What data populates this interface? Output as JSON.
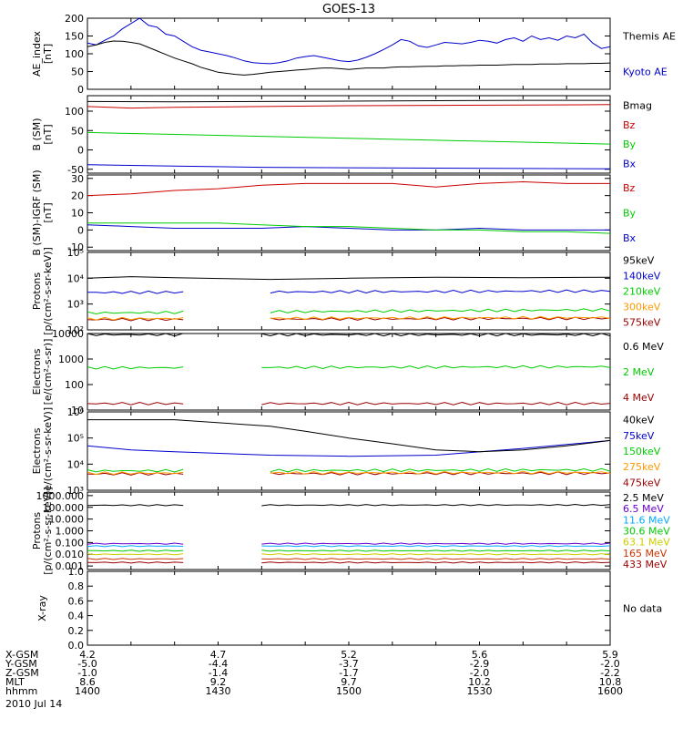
{
  "title": "GOES-13",
  "date": "2010 Jul 14",
  "footer": {
    "rows": [
      {
        "label": "X-GSM",
        "values": [
          "4.2",
          "4.7",
          "5.2",
          "5.6",
          "5.9"
        ]
      },
      {
        "label": "Y-GSM",
        "values": [
          "-5.0",
          "-4.4",
          "-3.7",
          "-2.9",
          "-2.0"
        ]
      },
      {
        "label": "Z-GSM",
        "values": [
          "-1.0",
          "-1.4",
          "-1.7",
          "-2.0",
          "-2.2"
        ]
      },
      {
        "label": "MLT",
        "values": [
          "8.6",
          "9.2",
          "9.7",
          "10.2",
          "10.8"
        ]
      },
      {
        "label": "hhmm",
        "values": [
          "1400",
          "1430",
          "1500",
          "1530",
          "1600"
        ]
      }
    ]
  },
  "chart_data": [
    {
      "type": "line",
      "ylabel": "AE_index\n[nT]",
      "ylim": [
        0,
        200
      ],
      "yticks": [
        "0",
        "50",
        "100",
        "150",
        "200"
      ],
      "series": [
        {
          "name": "Kyoto AE",
          "color": "#0000cc",
          "x": [
            0,
            2,
            4,
            6,
            8,
            10,
            12,
            14,
            16,
            18,
            20,
            22,
            24,
            26,
            28,
            30,
            32,
            34,
            36,
            38,
            40,
            42,
            44,
            46,
            48,
            50,
            52,
            54,
            56,
            58,
            60,
            62,
            64,
            66,
            68,
            70,
            72,
            74,
            76,
            78,
            80,
            82,
            84,
            86,
            88,
            90,
            92,
            94,
            96,
            98,
            100,
            102,
            104,
            106,
            108,
            110,
            112,
            114,
            116,
            118,
            120
          ],
          "y": [
            130,
            125,
            138,
            150,
            170,
            185,
            200,
            180,
            175,
            155,
            150,
            135,
            120,
            110,
            105,
            100,
            95,
            88,
            80,
            75,
            73,
            72,
            75,
            80,
            88,
            92,
            95,
            90,
            85,
            80,
            78,
            82,
            90,
            100,
            112,
            125,
            140,
            135,
            122,
            118,
            125,
            132,
            130,
            128,
            132,
            138,
            135,
            130,
            140,
            145,
            135,
            150,
            140,
            145,
            138,
            150,
            145,
            155,
            130,
            115,
            120
          ]
        },
        {
          "name": "Themis AE",
          "color": "#000000",
          "x": [
            0,
            2,
            4,
            6,
            8,
            10,
            12,
            14,
            16,
            18,
            20,
            22,
            24,
            26,
            28,
            30,
            32,
            34,
            36,
            38,
            40,
            42,
            44,
            46,
            48,
            50,
            52,
            54,
            56,
            58,
            60,
            62,
            64,
            66,
            68,
            70,
            72,
            74,
            76,
            78,
            80,
            82,
            84,
            86,
            88,
            90,
            92,
            94,
            96,
            98,
            100,
            102,
            104,
            106,
            108,
            110,
            112,
            114,
            116,
            118,
            120
          ],
          "y": [
            120,
            125,
            132,
            136,
            135,
            132,
            128,
            118,
            108,
            98,
            88,
            80,
            72,
            62,
            55,
            48,
            45,
            42,
            40,
            42,
            45,
            48,
            50,
            52,
            54,
            56,
            58,
            60,
            60,
            58,
            56,
            58,
            60,
            60,
            60,
            62,
            63,
            63,
            64,
            65,
            65,
            66,
            66,
            67,
            67,
            68,
            68,
            68,
            69,
            70,
            70,
            70,
            71,
            71,
            71,
            72,
            72,
            72,
            73,
            73,
            74
          ]
        }
      ]
    },
    {
      "type": "line",
      "ylabel": "B (SM)\n[nT]",
      "ylim": [
        -60,
        140
      ],
      "yticks": [
        "-50",
        "0",
        "50",
        "100"
      ],
      "series": [
        {
          "name": "Bx",
          "color": "#0000cc",
          "x": [
            0,
            20,
            40,
            60,
            80,
            100,
            120
          ],
          "y": [
            -38,
            -42,
            -45,
            -46,
            -47,
            -48,
            -49
          ]
        },
        {
          "name": "By",
          "color": "#00cc00",
          "x": [
            0,
            20,
            40,
            60,
            80,
            100,
            120
          ],
          "y": [
            45,
            40,
            35,
            30,
            25,
            20,
            15
          ]
        },
        {
          "name": "Bz",
          "color": "#cc0000",
          "x": [
            0,
            10,
            20,
            40,
            60,
            80,
            100,
            120
          ],
          "y": [
            112,
            108,
            110,
            112,
            114,
            115,
            116,
            117
          ]
        },
        {
          "name": "Bmag",
          "color": "#000000",
          "x": [
            0,
            20,
            40,
            60,
            80,
            100,
            120
          ],
          "y": [
            125,
            124,
            125,
            126,
            127,
            128,
            128
          ]
        }
      ]
    },
    {
      "type": "line",
      "ylabel": "B (SM)-IGRF (SM)\n[nT]",
      "ylim": [
        -12,
        32
      ],
      "yticks": [
        "-10",
        "0",
        "10",
        "20",
        "30"
      ],
      "series": [
        {
          "name": "Bx",
          "color": "#0000cc",
          "x": [
            0,
            10,
            20,
            30,
            40,
            50,
            60,
            70,
            80,
            90,
            100,
            110,
            120
          ],
          "y": [
            3,
            2,
            1,
            1,
            1,
            2,
            1,
            0,
            0,
            1,
            0,
            0,
            0
          ]
        },
        {
          "name": "By",
          "color": "#00cc00",
          "x": [
            0,
            10,
            20,
            30,
            40,
            50,
            60,
            70,
            80,
            90,
            100,
            110,
            120
          ],
          "y": [
            4,
            4,
            4,
            4,
            3,
            2,
            2,
            1,
            0,
            0,
            -1,
            -1,
            -2
          ]
        },
        {
          "name": "Bz",
          "color": "#cc0000",
          "x": [
            0,
            10,
            20,
            30,
            40,
            50,
            60,
            70,
            80,
            90,
            100,
            110,
            120
          ],
          "y": [
            20,
            21,
            23,
            24,
            26,
            27,
            27,
            27,
            25,
            27,
            28,
            27,
            27
          ]
        }
      ]
    },
    {
      "type": "line",
      "log": true,
      "ylabel": "Protons\n[p/(cm²-s-sr-keV)]",
      "ylim": [
        100,
        100000
      ],
      "yticks": [
        "10²",
        "10³",
        "10⁴",
        "10⁵"
      ],
      "gap": [
        22,
        42
      ],
      "series": [
        {
          "name": "575keV",
          "color": "#990000",
          "x": [
            0,
            120
          ],
          "y": [
            250,
            280
          ]
        },
        {
          "name": "300keV",
          "color": "#ff9900",
          "x": [
            0,
            120
          ],
          "y": [
            270,
            300
          ]
        },
        {
          "name": "210keV",
          "color": "#00cc00",
          "x": [
            0,
            120
          ],
          "y": [
            450,
            600
          ]
        },
        {
          "name": "140keV",
          "color": "#0000cc",
          "x": [
            0,
            120
          ],
          "y": [
            2800,
            3200
          ]
        },
        {
          "name": "95keV",
          "color": "#000000",
          "x": [
            0,
            10,
            20,
            42,
            60,
            80,
            100,
            120
          ],
          "y": [
            10000,
            11500,
            10500,
            9000,
            10000,
            11000,
            10500,
            11000
          ]
        }
      ]
    },
    {
      "type": "line",
      "log": true,
      "ylabel": "Electrons\n[e/(cm²-s-sr)]",
      "ylim": [
        10,
        10000
      ],
      "yticks": [
        "10",
        "100",
        "1000",
        "10000"
      ],
      "gap": [
        22,
        40
      ],
      "series": [
        {
          "name": "4 MeV",
          "color": "#990000",
          "x": [
            0,
            120
          ],
          "y": [
            18,
            18
          ]
        },
        {
          "name": "2 MeV",
          "color": "#00cc00",
          "x": [
            0,
            120
          ],
          "y": [
            450,
            500
          ]
        },
        {
          "name": "0.6 MeV",
          "color": "#000000",
          "x": [
            0,
            120
          ],
          "y": [
            9000,
            9000
          ]
        }
      ]
    },
    {
      "type": "line",
      "log": true,
      "ylabel": "Electrons\n[e/(cm²-s-sr-keV)]",
      "ylim": [
        1000,
        1000000
      ],
      "yticks": [
        "10³",
        "10⁴",
        "10⁵",
        "10⁶"
      ],
      "gap": [
        22,
        42
      ],
      "series": [
        {
          "name": "475keV",
          "color": "#990000",
          "x": [
            0,
            120
          ],
          "y": [
            4200,
            4500
          ]
        },
        {
          "name": "275keV",
          "color": "#ff9900",
          "x": [
            0,
            120
          ],
          "y": [
            4500,
            4800
          ]
        },
        {
          "name": "150keV",
          "color": "#00cc00",
          "x": [
            0,
            120
          ],
          "y": [
            5500,
            6000
          ]
        },
        {
          "name": "75keV",
          "color": "#0000cc",
          "x": [
            0,
            10,
            20,
            42,
            60,
            80,
            100,
            120
          ],
          "y": [
            50000,
            35000,
            30000,
            22000,
            20000,
            22000,
            40000,
            80000
          ]
        },
        {
          "name": "40keV",
          "color": "#000000",
          "x": [
            0,
            10,
            20,
            42,
            50,
            60,
            70,
            80,
            90,
            100,
            110,
            120
          ],
          "y": [
            500000,
            500000,
            500000,
            280000,
            180000,
            100000,
            60000,
            35000,
            30000,
            35000,
            50000,
            80000
          ]
        }
      ]
    },
    {
      "type": "line",
      "log": true,
      "ylabel": "Protons\n[p/(cm²-s-sr-keV)]",
      "ylim": [
        0.0005,
        2000
      ],
      "yticks": [
        "0.001",
        "0.010",
        "0.100",
        "1.000",
        "10.000",
        "100.000",
        "1000.000"
      ],
      "gap": [
        22,
        40
      ],
      "series": [
        {
          "name": "433 MeV",
          "color": "#990000",
          "x": [
            0,
            120
          ],
          "y": [
            0.002,
            0.002
          ]
        },
        {
          "name": "165 MeV",
          "color": "#cc3300",
          "x": [
            0,
            120
          ],
          "y": [
            0.004,
            0.004
          ]
        },
        {
          "name": "63.1 MeV",
          "color": "#cccc00",
          "x": [
            0,
            120
          ],
          "y": [
            0.01,
            0.01
          ]
        },
        {
          "name": "30.6 MeV",
          "color": "#00cc00",
          "x": [
            0,
            120
          ],
          "y": [
            0.02,
            0.02
          ]
        },
        {
          "name": "11.6 MeV",
          "color": "#00aaff",
          "x": [
            0,
            120
          ],
          "y": [
            0.05,
            0.05
          ]
        },
        {
          "name": "6.5 MeV",
          "color": "#6600cc",
          "x": [
            0,
            120
          ],
          "y": [
            0.08,
            0.08
          ]
        },
        {
          "name": "2.5 MeV",
          "color": "#000000",
          "x": [
            0,
            120
          ],
          "y": [
            150,
            160
          ]
        }
      ]
    },
    {
      "type": "line",
      "ylabel": "X-ray",
      "ylim": [
        0,
        1
      ],
      "yticks": [
        "0.0",
        "0.2",
        "0.4",
        "0.6",
        "0.8",
        "1.0"
      ],
      "no_data": "No data",
      "series": []
    }
  ]
}
